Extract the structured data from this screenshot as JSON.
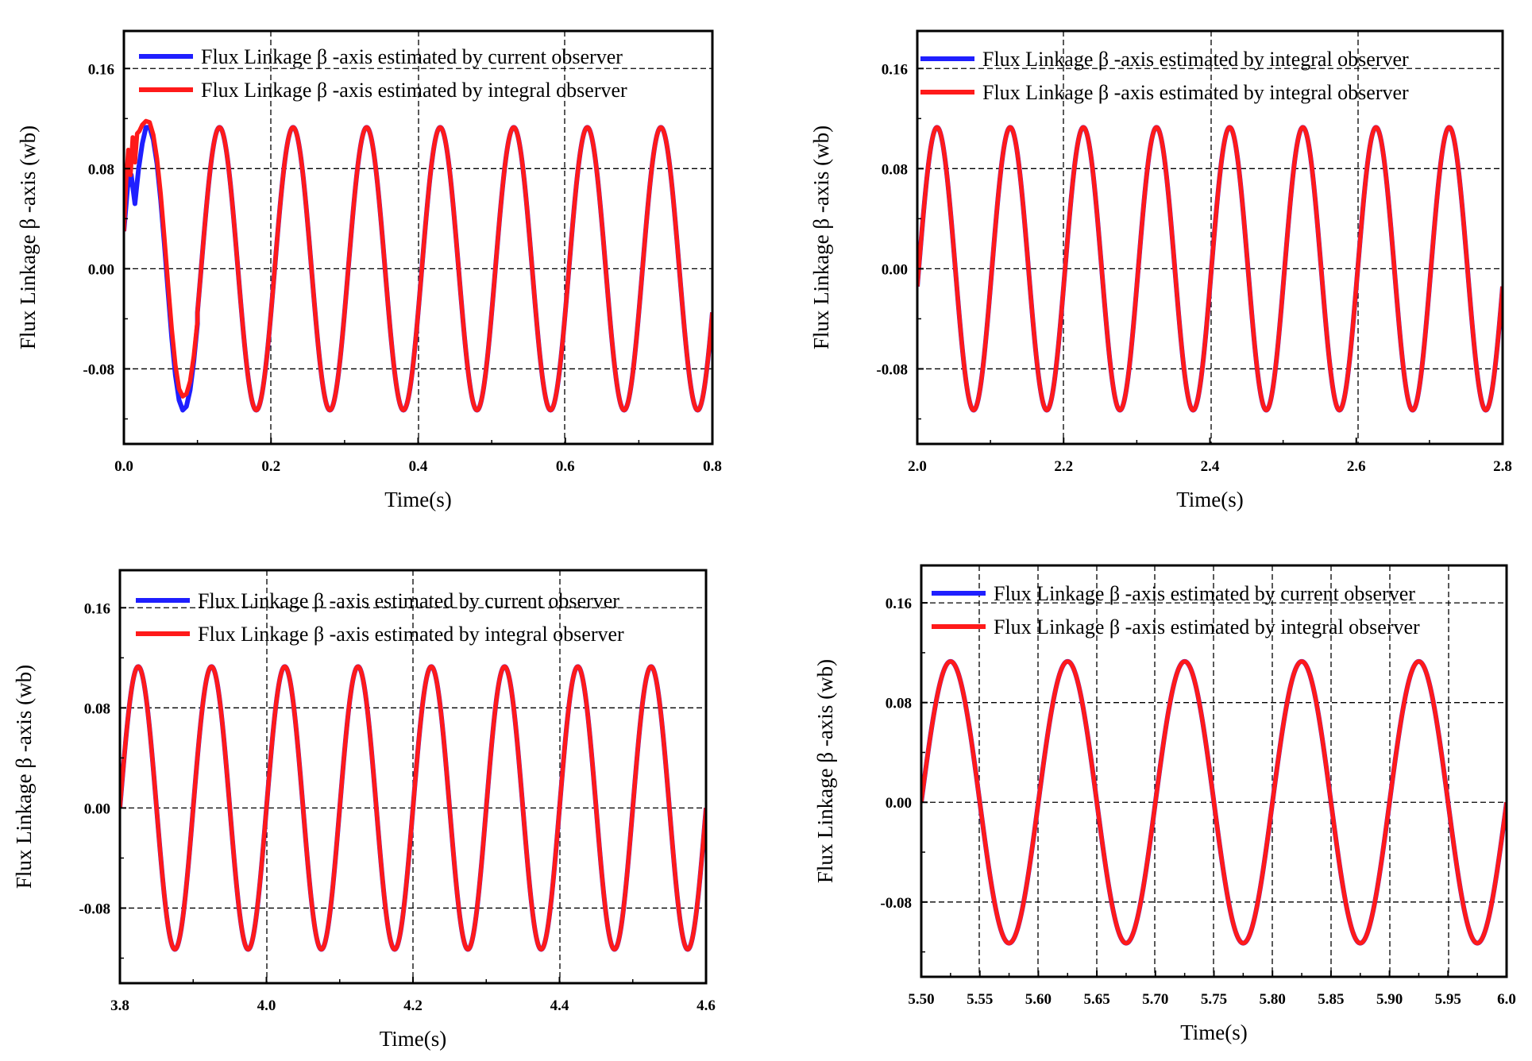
{
  "colors": {
    "current": "#1f1fff",
    "integral": "#ff1a1a",
    "frame": "#000000",
    "grid": "#000000"
  },
  "chart_data": [
    {
      "type": "line",
      "title": "",
      "xlabel": "Time(s)",
      "ylabel": "Flux Linkage β -axis (wb)",
      "xlim": [
        0.0,
        0.8
      ],
      "ylim": [
        -0.14,
        0.19
      ],
      "xticks": [
        "0.0",
        "0.2",
        "0.4",
        "0.6",
        "0.8"
      ],
      "yticks": [
        "0.16",
        "0.08",
        "0.00",
        "-0.08"
      ],
      "legend": [
        "Flux Linkage β -axis estimated by current observer",
        "Flux Linkage β -axis estimated by integral observer"
      ],
      "legend_position": "top",
      "grid": true,
      "series": [
        {
          "name": "Flux Linkage β -axis estimated by current observer",
          "color": "#1f1fff",
          "x": [
            0.0,
            0.005,
            0.01,
            0.015,
            0.02,
            0.025,
            0.03,
            0.035,
            0.04,
            0.045,
            0.05,
            0.055,
            0.06,
            0.065,
            0.07,
            0.075,
            0.08,
            0.085,
            0.09,
            0.095,
            0.1
          ],
          "y": [
            0.03,
            0.065,
            0.075,
            0.052,
            0.08,
            0.1,
            0.113,
            0.113,
            0.103,
            0.084,
            0.055,
            0.02,
            -0.018,
            -0.055,
            -0.085,
            -0.105,
            -0.113,
            -0.11,
            -0.097,
            -0.074,
            -0.044
          ]
        },
        {
          "name": "Flux Linkage β -axis estimated by integral observer",
          "color": "#ff1a1a",
          "x": [
            0.0,
            0.003,
            0.006,
            0.009,
            0.012,
            0.015,
            0.018,
            0.021,
            0.025,
            0.03,
            0.035,
            0.04,
            0.045,
            0.05,
            0.055,
            0.06,
            0.065,
            0.07,
            0.075,
            0.08,
            0.085,
            0.09,
            0.095,
            0.1
          ],
          "y": [
            0.03,
            0.07,
            0.095,
            0.075,
            0.105,
            0.085,
            0.108,
            0.11,
            0.115,
            0.118,
            0.117,
            0.107,
            0.088,
            0.06,
            0.025,
            -0.012,
            -0.048,
            -0.077,
            -0.096,
            -0.102,
            -0.1,
            -0.09,
            -0.07,
            -0.042
          ]
        }
      ],
      "steady_state": {
        "amplitude": 0.113,
        "frequency_hz": 10,
        "peak_time": 0.13,
        "from": 0.1,
        "to": 0.8
      }
    },
    {
      "type": "line",
      "title": "",
      "xlabel": "Time(s)",
      "ylabel": "Flux Linkage β -axis (wb)",
      "xlim": [
        2.0,
        2.8
      ],
      "ylim": [
        -0.14,
        0.19
      ],
      "xticks": [
        "2.0",
        "2.2",
        "2.4",
        "2.6",
        "2.8"
      ],
      "yticks": [
        "0.16",
        "0.08",
        "0.00",
        "-0.08"
      ],
      "legend": [
        "Flux Linkage β -axis estimated by integral observer",
        "Flux Linkage β -axis estimated by integral observer"
      ],
      "legend_position": "top",
      "grid": true,
      "series": [
        {
          "name": "Flux Linkage β -axis estimated by integral observer",
          "color": "#1f1fff",
          "amplitude": 0.113,
          "frequency_hz": 10,
          "peak_time": 2.127
        },
        {
          "name": "Flux Linkage β -axis estimated by integral observer",
          "color": "#ff1a1a",
          "amplitude": 0.113,
          "frequency_hz": 10,
          "peak_time": 2.127
        }
      ]
    },
    {
      "type": "line",
      "title": "",
      "xlabel": "Time(s)",
      "ylabel": "Flux Linkage β -axis (wb)",
      "xlim": [
        3.8,
        4.6
      ],
      "ylim": [
        -0.14,
        0.19
      ],
      "xticks": [
        "3.8",
        "4.0",
        "4.2",
        "4.4",
        "4.6"
      ],
      "yticks": [
        "0.16",
        "0.08",
        "0.00",
        "-0.08"
      ],
      "legend": [
        "Flux Linkage β -axis estimated by current observer",
        "Flux Linkage β -axis estimated by integral observer"
      ],
      "legend_position": "top",
      "grid": true,
      "series": [
        {
          "name": "Flux Linkage β -axis estimated by current observer",
          "color": "#1f1fff",
          "amplitude": 0.113,
          "frequency_hz": 10,
          "peak_time": 3.825
        },
        {
          "name": "Flux Linkage β -axis estimated by integral observer",
          "color": "#ff1a1a",
          "amplitude": 0.113,
          "frequency_hz": 10,
          "peak_time": 3.825
        }
      ]
    },
    {
      "type": "line",
      "title": "",
      "xlabel": "Time(s)",
      "ylabel": "Flux Linkage β -axis (wb)",
      "xlim": [
        5.5,
        6.0
      ],
      "ylim": [
        -0.14,
        0.19
      ],
      "xticks": [
        "5.50",
        "5.55",
        "5.60",
        "5.65",
        "5.70",
        "5.75",
        "5.80",
        "5.85",
        "5.90",
        "5.95",
        "6.0"
      ],
      "yticks": [
        "0.16",
        "0.08",
        "0.00",
        "-0.08"
      ],
      "legend": [
        "Flux Linkage β -axis estimated by current observer",
        "Flux Linkage β -axis estimated by integral observer"
      ],
      "legend_position": "top",
      "grid": true,
      "series": [
        {
          "name": "Flux Linkage β -axis estimated by current observer",
          "color": "#1f1fff",
          "amplitude": 0.113,
          "frequency_hz": 10,
          "peak_time": 5.525
        },
        {
          "name": "Flux Linkage β -axis estimated by integral observer",
          "color": "#ff1a1a",
          "amplitude": 0.113,
          "frequency_hz": 10,
          "peak_time": 5.525
        }
      ]
    }
  ]
}
